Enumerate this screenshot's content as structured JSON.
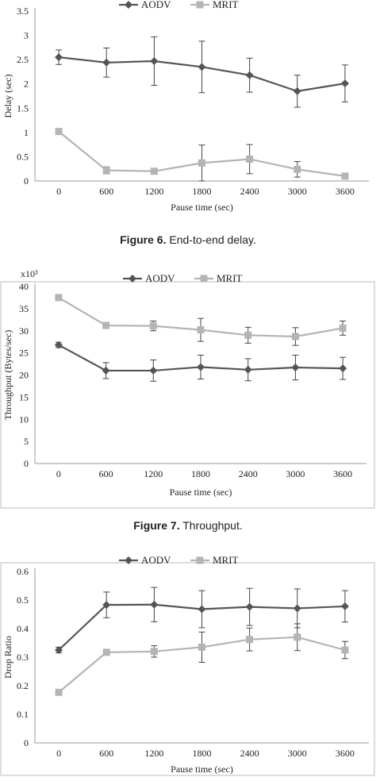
{
  "captions": [
    {
      "label": "Figure 6.",
      "text": "End-to-end delay."
    },
    {
      "label": "Figure 7.",
      "text": "Throughput."
    }
  ],
  "colors": {
    "aodv": "#555555",
    "mrit": "#b4b4b4",
    "error": "#444444"
  },
  "chart_data": [
    {
      "type": "line",
      "categories": [
        "0",
        "600",
        "1200",
        "1800",
        "2400",
        "3000",
        "3600"
      ],
      "xlabel": "Pause time (sec)",
      "ylabel": "Delay (sec)",
      "ylim": [
        0,
        3.5
      ],
      "yticks": [
        "0",
        "0.5",
        "1",
        "1.5",
        "2",
        "2.5",
        "3",
        "3.5"
      ],
      "multiplier": "",
      "legend": "top",
      "series": [
        {
          "name": "AODV",
          "marker": "diamond",
          "values": [
            2.55,
            2.44,
            2.47,
            2.35,
            2.18,
            1.85,
            2.01
          ],
          "err": [
            0.15,
            0.3,
            0.5,
            0.53,
            0.35,
            0.33,
            0.38
          ]
        },
        {
          "name": "MRIT",
          "marker": "square",
          "values": [
            1.02,
            0.22,
            0.2,
            0.37,
            0.45,
            0.24,
            0.1
          ],
          "err": [
            0,
            0.07,
            0.05,
            0.37,
            0.3,
            0.16,
            0.06
          ]
        }
      ]
    },
    {
      "type": "line",
      "categories": [
        "0",
        "600",
        "1200",
        "1800",
        "2400",
        "3000",
        "3600"
      ],
      "xlabel": "Pause time (sec)",
      "ylabel": "Throughput (Bytes/sec)",
      "ylim": [
        0,
        40
      ],
      "yticks": [
        "0",
        "5",
        "10",
        "15",
        "20",
        "25",
        "30",
        "35",
        "40"
      ],
      "multiplier": "x10³",
      "legend": "top",
      "series": [
        {
          "name": "AODV",
          "marker": "diamond",
          "values": [
            26.8,
            21,
            21,
            21.8,
            21.2,
            21.7,
            21.5
          ],
          "err": [
            0.6,
            1.8,
            2.4,
            2.7,
            2.5,
            2.8,
            2.5
          ]
        },
        {
          "name": "MRIT",
          "marker": "square",
          "values": [
            37.5,
            31.2,
            31.1,
            30.2,
            29,
            28.7,
            30.6
          ],
          "err": [
            0,
            0,
            1.1,
            2.6,
            1.8,
            2.0,
            1.6
          ]
        }
      ]
    },
    {
      "type": "line",
      "categories": [
        "0",
        "600",
        "1200",
        "1800",
        "2400",
        "3000",
        "3600"
      ],
      "xlabel": "Pause time (sec)",
      "ylabel": "Drop Ratio",
      "ylim": [
        0,
        0.6
      ],
      "yticks": [
        "0",
        "0.1",
        "0.2",
        "0.3",
        "0.4",
        "0.5",
        "0.6"
      ],
      "multiplier": "",
      "legend": "top",
      "series": [
        {
          "name": "AODV",
          "marker": "diamond",
          "values": [
            0.325,
            0.483,
            0.484,
            0.468,
            0.476,
            0.471,
            0.478
          ],
          "err": [
            0.01,
            0.045,
            0.06,
            0.065,
            0.065,
            0.068,
            0.055
          ]
        },
        {
          "name": "MRIT",
          "marker": "square",
          "values": [
            0.177,
            0.317,
            0.32,
            0.335,
            0.362,
            0.37,
            0.325
          ],
          "err": [
            0,
            0,
            0.02,
            0.053,
            0.04,
            0.047,
            0.03
          ]
        }
      ]
    }
  ]
}
